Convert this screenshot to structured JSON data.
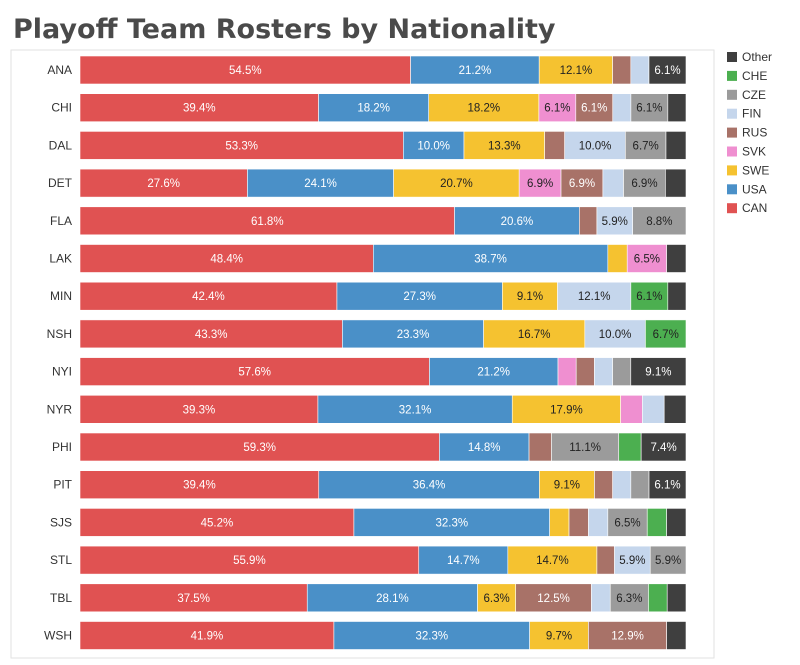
{
  "chart_data": {
    "type": "bar",
    "orientation": "horizontal",
    "stacked": true,
    "title": "Playoff Team Rosters by Nationality",
    "categories": [
      "ANA",
      "CHI",
      "DAL",
      "DET",
      "FLA",
      "LAK",
      "MIN",
      "NSH",
      "NYI",
      "NYR",
      "PHI",
      "PIT",
      "SJS",
      "STL",
      "TBL",
      "WSH"
    ],
    "series_order": [
      "CAN",
      "USA",
      "SWE",
      "SVK",
      "RUS",
      "FIN",
      "CZE",
      "CHE",
      "Other"
    ],
    "legend_order": [
      "Other",
      "CHE",
      "CZE",
      "FIN",
      "RUS",
      "SVK",
      "SWE",
      "USA",
      "CAN"
    ],
    "colors": {
      "CAN": "#e05252",
      "USA": "#4a90c8",
      "SWE": "#f5c230",
      "SVK": "#ef8fd0",
      "RUS": "#a87268",
      "FIN": "#c5d6ec",
      "CZE": "#9b9b9b",
      "CHE": "#4caf50",
      "Other": "#3f3f3f"
    },
    "rows": [
      {
        "team": "ANA",
        "values": {
          "CAN": 54.5,
          "USA": 21.2,
          "SWE": 12.1,
          "SVK": 0,
          "RUS": 3.0,
          "FIN": 3.0,
          "CZE": 0,
          "CHE": 0,
          "Other": 6.1
        },
        "labels": {
          "CAN": "54.5%",
          "USA": "21.2%",
          "SWE": "12.1%",
          "Other": "6.1%"
        }
      },
      {
        "team": "CHI",
        "values": {
          "CAN": 39.4,
          "USA": 18.2,
          "SWE": 18.2,
          "SVK": 6.1,
          "RUS": 6.1,
          "FIN": 3.0,
          "CZE": 6.1,
          "CHE": 0,
          "Other": 3.0
        },
        "labels": {
          "CAN": "39.4%",
          "USA": "18.2%",
          "SWE": "18.2%",
          "SVK": "6.1%",
          "RUS": "6.1%",
          "CZE": "6.1%"
        }
      },
      {
        "team": "DAL",
        "values": {
          "CAN": 53.3,
          "USA": 10.0,
          "SWE": 13.3,
          "SVK": 0,
          "RUS": 3.3,
          "FIN": 10.0,
          "CZE": 6.7,
          "CHE": 0,
          "Other": 3.3
        },
        "labels": {
          "CAN": "53.3%",
          "USA": "10.0%",
          "SWE": "13.3%",
          "FIN": "10.0%",
          "CZE": "6.7%"
        }
      },
      {
        "team": "DET",
        "values": {
          "CAN": 27.6,
          "USA": 24.1,
          "SWE": 20.7,
          "SVK": 6.9,
          "RUS": 6.9,
          "FIN": 3.4,
          "CZE": 6.9,
          "CHE": 0,
          "Other": 3.4
        },
        "labels": {
          "CAN": "27.6%",
          "USA": "24.1%",
          "SWE": "20.7%",
          "SVK": "6.9%",
          "RUS": "6.9%",
          "CZE": "6.9%"
        }
      },
      {
        "team": "FLA",
        "values": {
          "CAN": 61.8,
          "USA": 20.6,
          "SWE": 0,
          "SVK": 0,
          "RUS": 2.9,
          "FIN": 5.9,
          "CZE": 8.8,
          "CHE": 0,
          "Other": 0
        },
        "labels": {
          "CAN": "61.8%",
          "USA": "20.6%",
          "FIN": "5.9%",
          "CZE": "8.8%"
        }
      },
      {
        "team": "LAK",
        "values": {
          "CAN": 48.4,
          "USA": 38.7,
          "SWE": 3.2,
          "SVK": 6.5,
          "RUS": 0,
          "FIN": 0,
          "CZE": 0,
          "CHE": 0,
          "Other": 3.2
        },
        "labels": {
          "CAN": "48.4%",
          "USA": "38.7%",
          "SVK": "6.5%"
        }
      },
      {
        "team": "MIN",
        "values": {
          "CAN": 42.4,
          "USA": 27.3,
          "SWE": 9.1,
          "SVK": 0,
          "RUS": 0,
          "FIN": 12.1,
          "CZE": 0,
          "CHE": 6.1,
          "Other": 3.0
        },
        "labels": {
          "CAN": "42.4%",
          "USA": "27.3%",
          "SWE": "9.1%",
          "FIN": "12.1%",
          "CHE": "6.1%"
        }
      },
      {
        "team": "NSH",
        "values": {
          "CAN": 43.3,
          "USA": 23.3,
          "SWE": 16.7,
          "SVK": 0,
          "RUS": 0,
          "FIN": 10.0,
          "CZE": 0,
          "CHE": 6.7,
          "Other": 0
        },
        "labels": {
          "CAN": "43.3%",
          "USA": "23.3%",
          "SWE": "16.7%",
          "FIN": "10.0%",
          "CHE": "6.7%"
        }
      },
      {
        "team": "NYI",
        "values": {
          "CAN": 57.6,
          "USA": 21.2,
          "SWE": 0,
          "SVK": 3.0,
          "RUS": 3.0,
          "FIN": 3.0,
          "CZE": 3.0,
          "CHE": 0,
          "Other": 9.1
        },
        "labels": {
          "CAN": "57.6%",
          "USA": "21.2%",
          "Other": "9.1%"
        }
      },
      {
        "team": "NYR",
        "values": {
          "CAN": 39.3,
          "USA": 32.1,
          "SWE": 17.9,
          "SVK": 3.6,
          "RUS": 0,
          "FIN": 3.6,
          "CZE": 0,
          "CHE": 0,
          "Other": 3.6
        },
        "labels": {
          "CAN": "39.3%",
          "USA": "32.1%",
          "SWE": "17.9%"
        }
      },
      {
        "team": "PHI",
        "values": {
          "CAN": 59.3,
          "USA": 14.8,
          "SWE": 0,
          "SVK": 0,
          "RUS": 3.7,
          "FIN": 0,
          "CZE": 11.1,
          "CHE": 3.7,
          "Other": 7.4
        },
        "labels": {
          "CAN": "59.3%",
          "USA": "14.8%",
          "CZE": "11.1%",
          "Other": "7.4%"
        }
      },
      {
        "team": "PIT",
        "values": {
          "CAN": 39.4,
          "USA": 36.4,
          "SWE": 9.1,
          "SVK": 0,
          "RUS": 3.0,
          "FIN": 3.0,
          "CZE": 3.0,
          "CHE": 0,
          "Other": 6.1
        },
        "labels": {
          "CAN": "39.4%",
          "USA": "36.4%",
          "SWE": "9.1%",
          "Other": "6.1%"
        }
      },
      {
        "team": "SJS",
        "values": {
          "CAN": 45.2,
          "USA": 32.3,
          "SWE": 3.2,
          "SVK": 0,
          "RUS": 3.2,
          "FIN": 3.2,
          "CZE": 6.5,
          "CHE": 3.2,
          "Other": 3.2
        },
        "labels": {
          "CAN": "45.2%",
          "USA": "32.3%",
          "CZE": "6.5%"
        }
      },
      {
        "team": "STL",
        "values": {
          "CAN": 55.9,
          "USA": 14.7,
          "SWE": 14.7,
          "SVK": 0,
          "RUS": 2.9,
          "FIN": 5.9,
          "CZE": 5.9,
          "CHE": 0,
          "Other": 0
        },
        "labels": {
          "CAN": "55.9%",
          "USA": "14.7%",
          "SWE": "14.7%",
          "FIN": "5.9%",
          "CZE": "5.9%"
        }
      },
      {
        "team": "TBL",
        "values": {
          "CAN": 37.5,
          "USA": 28.1,
          "SWE": 6.3,
          "SVK": 0,
          "RUS": 12.5,
          "FIN": 3.1,
          "CZE": 6.3,
          "CHE": 3.1,
          "Other": 3.1
        },
        "labels": {
          "CAN": "37.5%",
          "USA": "28.1%",
          "SWE": "6.3%",
          "RUS": "12.5%",
          "CZE": "6.3%"
        }
      },
      {
        "team": "WSH",
        "values": {
          "CAN": 41.9,
          "USA": 32.3,
          "SWE": 9.7,
          "SVK": 0,
          "RUS": 12.9,
          "FIN": 0,
          "CZE": 0,
          "CHE": 0,
          "Other": 3.2
        },
        "labels": {
          "CAN": "41.9%",
          "USA": "32.3%",
          "SWE": "9.7%",
          "RUS": "12.9%"
        }
      }
    ],
    "xlim": [
      0,
      100
    ],
    "legend_position": "right"
  }
}
